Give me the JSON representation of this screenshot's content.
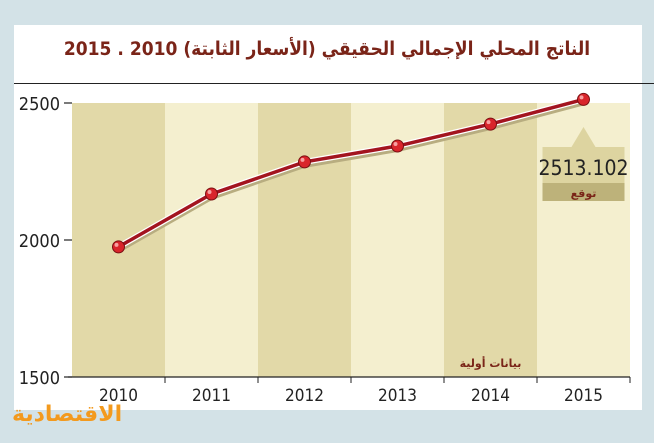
{
  "chart_data": {
    "type": "line",
    "title": "الناتج المحلي الإجمالي الحقيقي (الأسعار الثابتة) 2010 . 2015",
    "categories": [
      "2010",
      "2011",
      "2012",
      "2013",
      "2014",
      "2015"
    ],
    "values": [
      1975,
      2168,
      2285,
      2343,
      2423,
      2513.102
    ],
    "ylim": [
      1500,
      2500
    ],
    "yticks": [
      "1500",
      "2000",
      "2500"
    ],
    "xlabel": "",
    "ylabel": "",
    "annotations": {
      "forecast_value": "2513.102",
      "forecast_label": "توقع",
      "preliminary_label": "بيانات أولية"
    },
    "colors": {
      "line": "#a3141f",
      "band_dark": "#e2d9a8",
      "band_light": "#f4efcf",
      "point": "#d9252b"
    }
  },
  "logo": "الاقتصادية"
}
